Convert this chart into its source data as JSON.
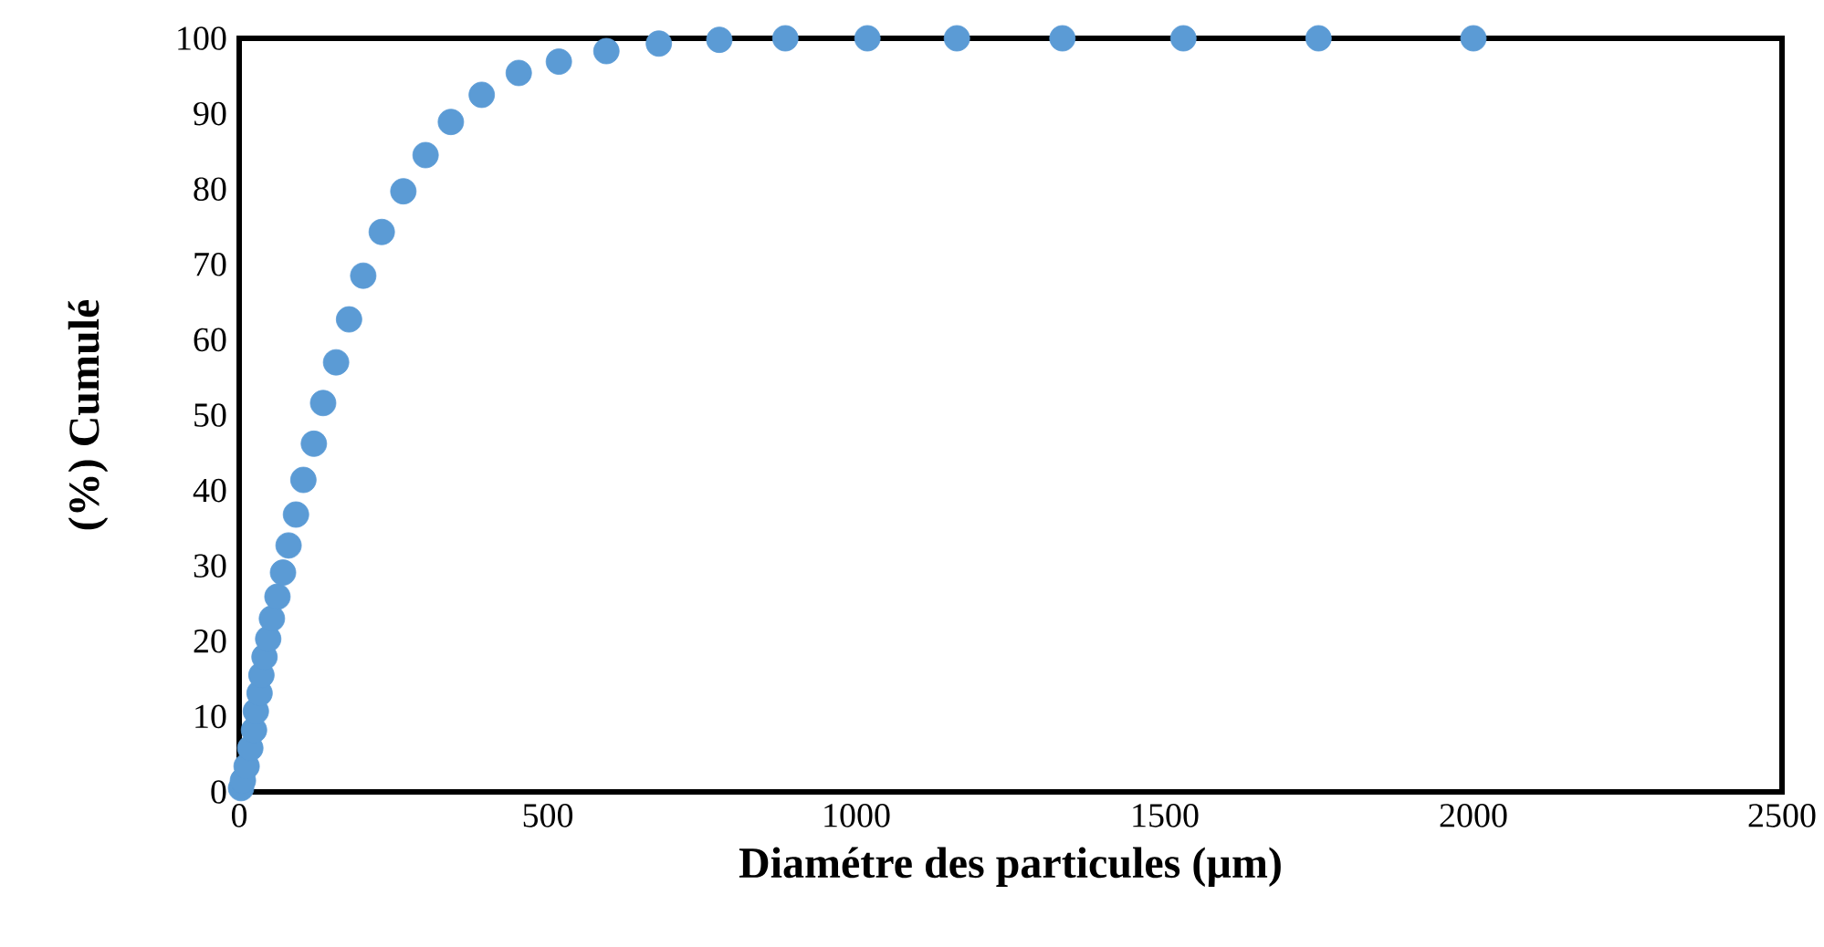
{
  "chart_data": {
    "type": "scatter",
    "xlabel": "**Diamétre des particules (µm)**",
    "ylabel": "**(%) Cumulé**",
    "xlim": [
      0,
      2500
    ],
    "ylim": [
      0,
      100
    ],
    "xticks": [
      0,
      500,
      1000,
      1500,
      2000,
      2500
    ],
    "yticks": [
      0,
      10,
      20,
      30,
      40,
      50,
      60,
      70,
      80,
      90,
      100
    ],
    "grid": false,
    "marker": "circle",
    "series": [
      {
        "color": "#5b9bd5",
        "x": [
          3,
          6,
          12,
          18,
          24,
          27,
          33,
          36,
          41,
          47,
          53,
          62,
          71,
          80,
          92,
          104,
          121,
          136,
          157,
          178,
          201,
          231,
          266,
          302,
          343,
          393,
          453,
          518,
          595,
          680,
          778,
          885,
          1018,
          1163,
          1334,
          1530,
          1749,
          2000
        ],
        "values": [
          0.5,
          1.5,
          3.4,
          5.8,
          8.2,
          10.7,
          13.1,
          15.5,
          17.9,
          20.3,
          23.0,
          25.9,
          29.1,
          32.7,
          36.8,
          41.4,
          46.2,
          51.6,
          57,
          62.7,
          68.5,
          74.3,
          79.7,
          84.5,
          88.9,
          92.5,
          95.4,
          96.9,
          98.3,
          99.3,
          99.8,
          100,
          100,
          100,
          100,
          100,
          100,
          100
        ]
      }
    ]
  }
}
